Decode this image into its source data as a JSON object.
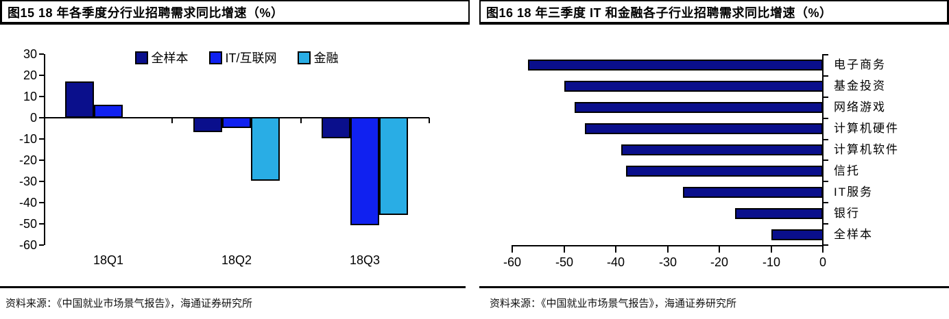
{
  "panels": [
    {
      "title": "图15 18 年各季度分行业招聘需求同比增速（%）",
      "source": "资料来源：《中国就业市场景气报告》，海通证券研究所"
    },
    {
      "title": "图16 18 年三季度 IT 和金融各子行业招聘需求同比增速（%）",
      "source": "资料来源：《中国就业市场景气报告》，海通证券研究所"
    }
  ],
  "colors": {
    "navy": "#0a0f8c",
    "blue": "#1021f0",
    "cyan": "#29ade5",
    "axis": "#000000"
  },
  "chart_data": [
    {
      "type": "bar",
      "title": "图15 18 年各季度分行业招聘需求同比增速（%）",
      "categories": [
        "18Q1",
        "18Q2",
        "18Q3"
      ],
      "series": [
        {
          "name": "全样本",
          "color": "#0a0f8c",
          "values": [
            17,
            -7,
            -10
          ]
        },
        {
          "name": "IT/互联网",
          "color": "#1021f0",
          "values": [
            6,
            -5,
            -51
          ]
        },
        {
          "name": "金融",
          "color": "#29ade5",
          "values": [
            0,
            -30,
            -46
          ]
        }
      ],
      "xlabel": "",
      "ylabel": "",
      "ylim": [
        -60,
        30
      ],
      "yticks": [
        30,
        20,
        10,
        0,
        -10,
        -20,
        -30,
        -40,
        -50,
        -60
      ],
      "legend_position": "top",
      "grid": false
    },
    {
      "type": "bar",
      "orientation": "horizontal",
      "title": "图16 18 年三季度 IT 和金融各子行业招聘需求同比增速（%）",
      "categories": [
        "电子商务",
        "基金投资",
        "网络游戏",
        "计算机硬件",
        "计算机软件",
        "信托",
        "IT服务",
        "银行",
        "全样本"
      ],
      "values": [
        -57,
        -50,
        -48,
        -46,
        -39,
        -38,
        -27,
        -17,
        -10
      ],
      "bar_color": "#0a0f8c",
      "xlabel": "",
      "ylabel": "",
      "xlim": [
        -62,
        0
      ],
      "xticks": [
        -60,
        -50,
        -40,
        -30,
        -20,
        -10,
        0
      ],
      "legend_position": "none",
      "grid": false
    }
  ]
}
